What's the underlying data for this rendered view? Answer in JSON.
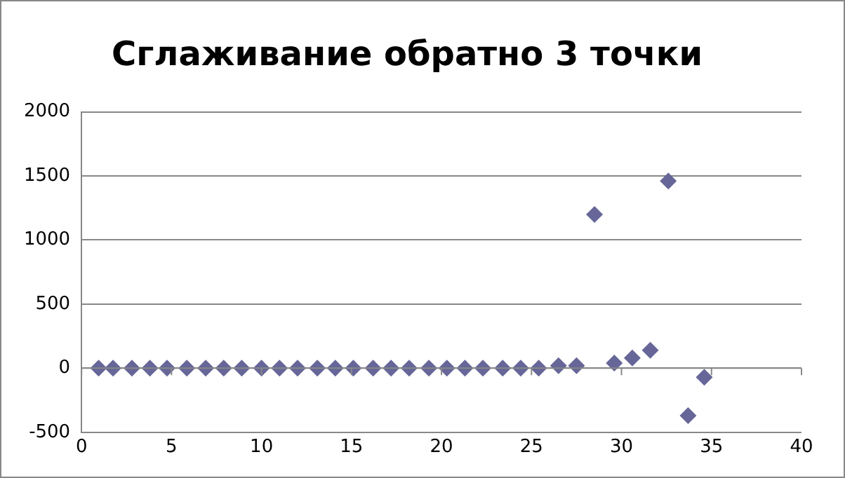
{
  "chart_data": {
    "type": "scatter",
    "title": "Сглаживание обратно 3 точки",
    "x": [
      0.95,
      1.75,
      2.8,
      3.8,
      4.75,
      5.85,
      6.9,
      7.9,
      8.9,
      10,
      11,
      12,
      13.1,
      14.1,
      15.1,
      16.2,
      17.2,
      18.2,
      19.3,
      20.3,
      21.3,
      22.3,
      23.4,
      24.4,
      25.4,
      26.5,
      27.5,
      28.5,
      29.6,
      30.6,
      31.6,
      32.6,
      33.7,
      34.6
    ],
    "series": [
      {
        "color": "#666699",
        "values": [
          0,
          0,
          0,
          0,
          0,
          0,
          0,
          0,
          0,
          0,
          0,
          0,
          0,
          0,
          0,
          0,
          0,
          0,
          0,
          0,
          0,
          0,
          0,
          0,
          0,
          20,
          20,
          1200,
          40,
          80,
          140,
          1460,
          -370,
          -70
        ]
      }
    ],
    "xlim": [
      0,
      40
    ],
    "xticks": [
      0,
      5,
      10,
      15,
      20,
      25,
      30,
      35,
      40
    ],
    "ylim": [
      -500,
      2000
    ],
    "yticks": [
      -500,
      0,
      500,
      1000,
      1500,
      2000
    ],
    "grid": "y",
    "legend": false,
    "marker": "diamond"
  }
}
